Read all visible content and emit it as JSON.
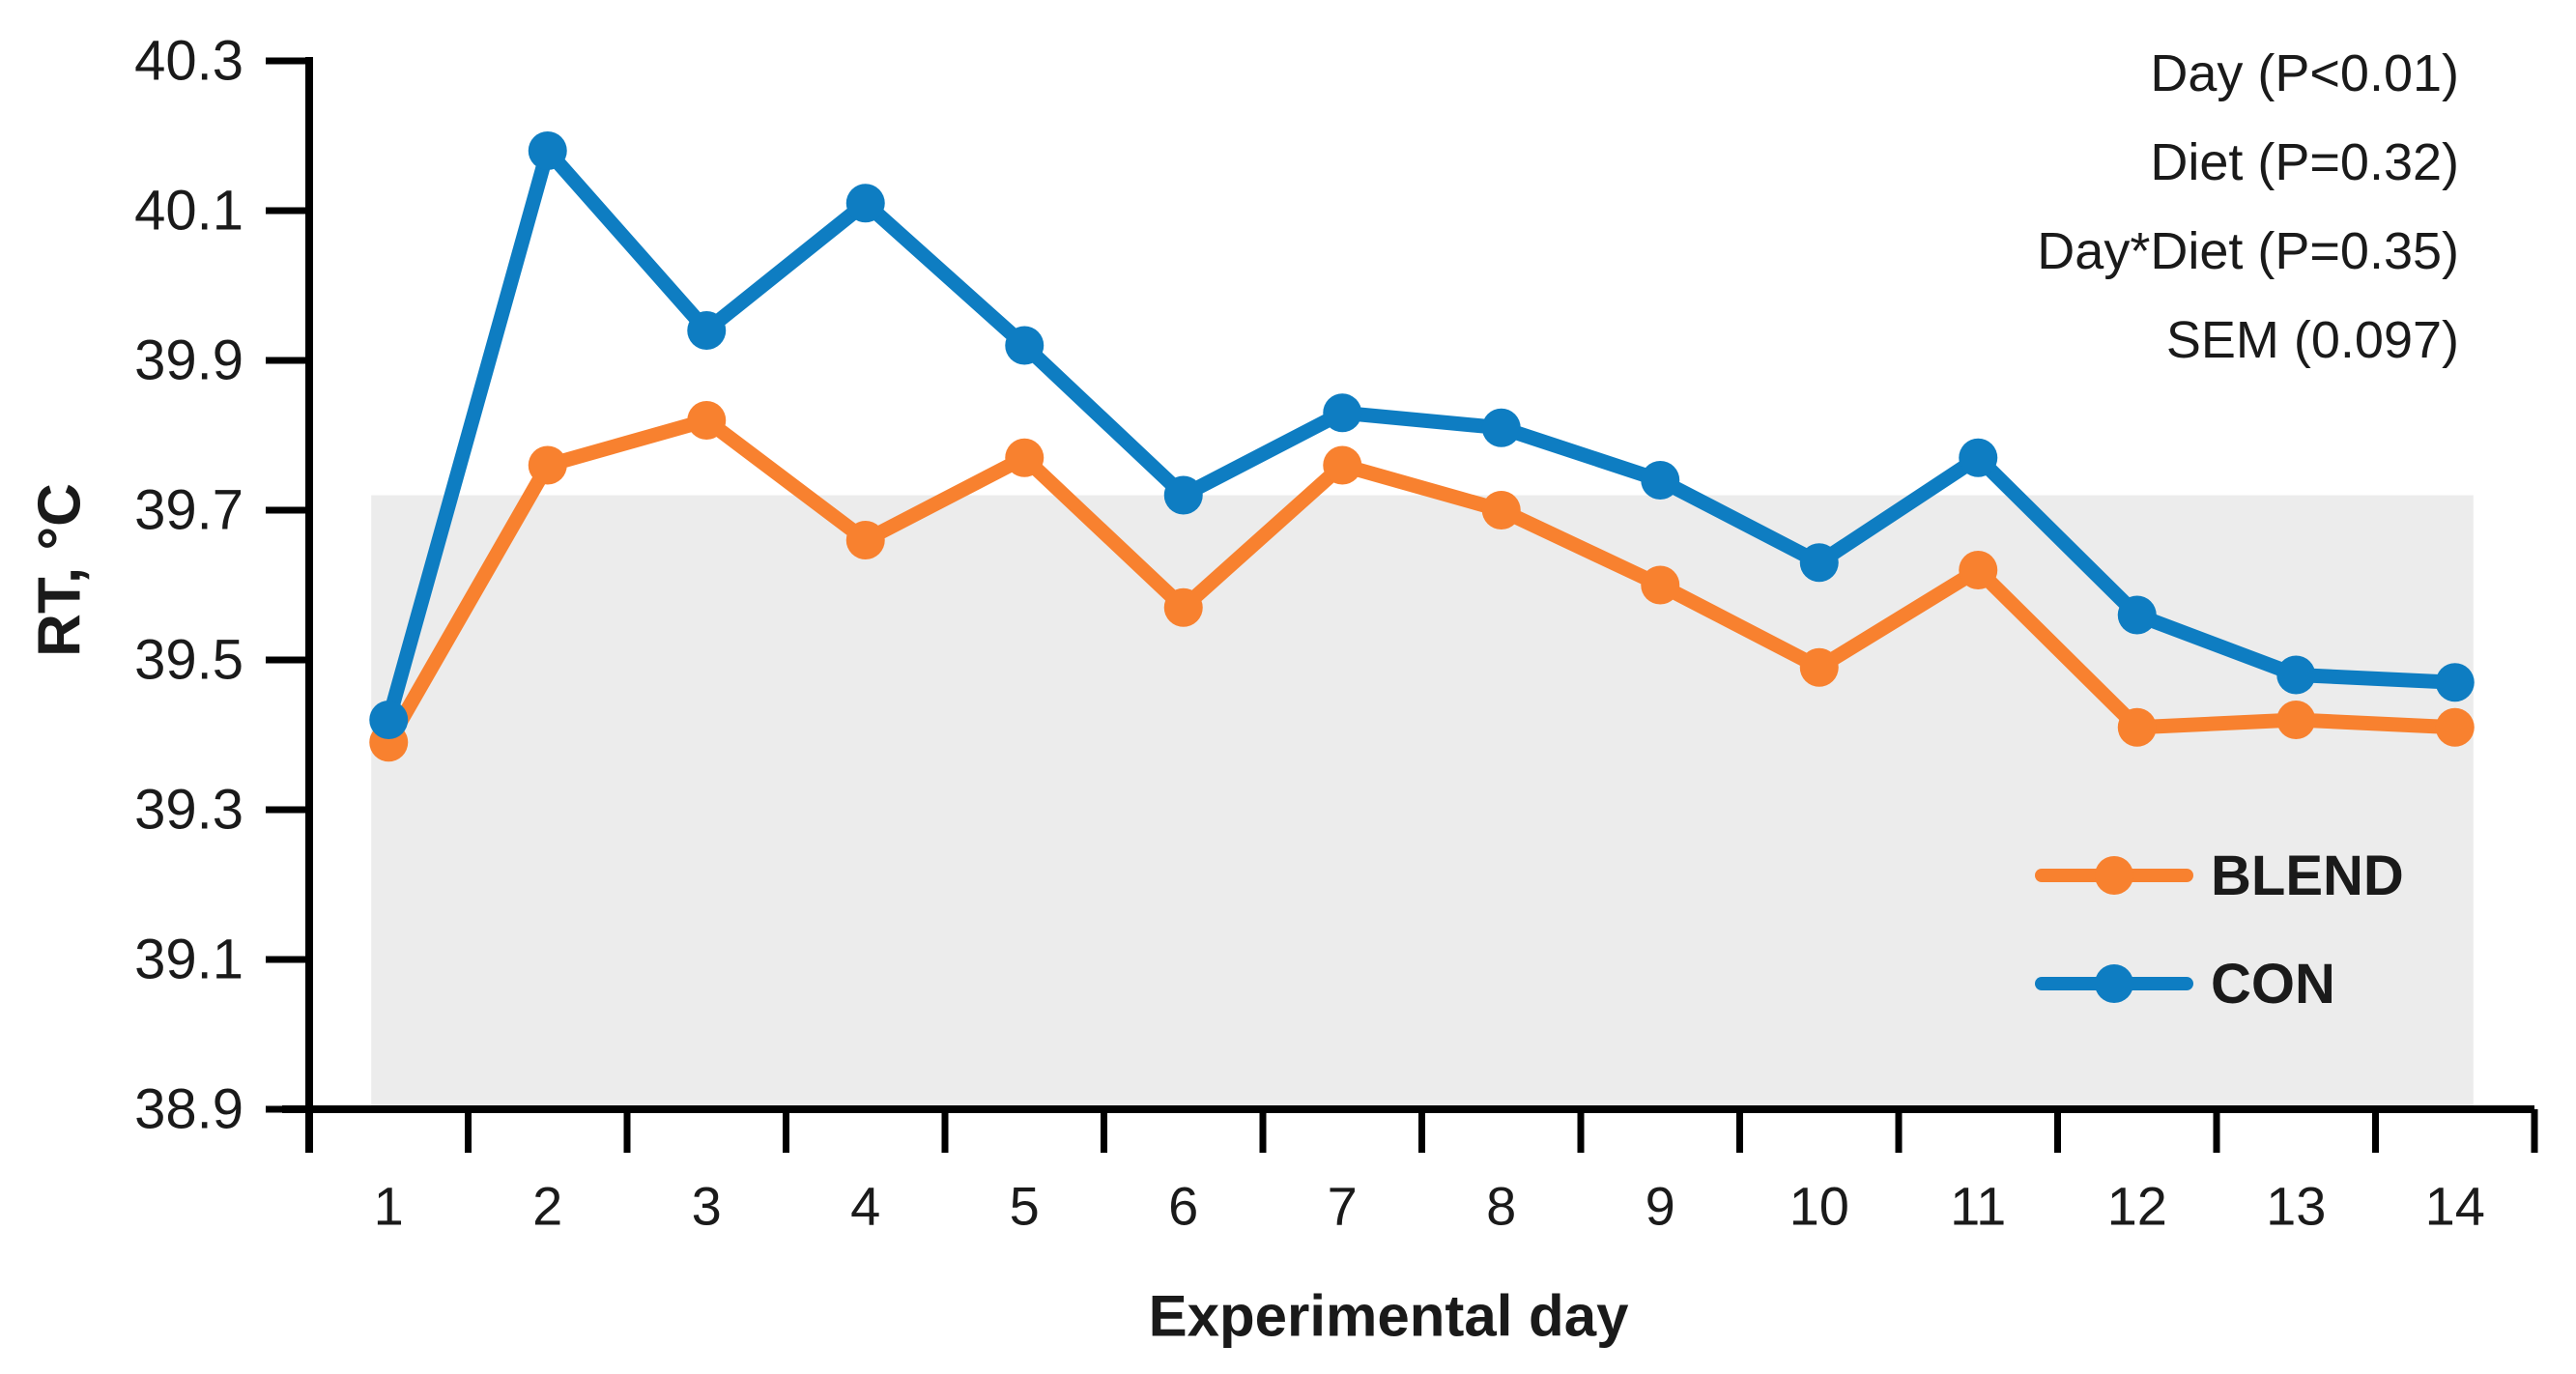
{
  "chart_data": {
    "type": "line",
    "title": "",
    "xlabel": "Experimental day",
    "ylabel": "RT, °C",
    "x": [
      1,
      2,
      3,
      4,
      5,
      6,
      7,
      8,
      9,
      10,
      11,
      12,
      13,
      14
    ],
    "ylim": [
      38.9,
      40.3
    ],
    "yticks": [
      38.9,
      39.1,
      39.3,
      39.5,
      39.7,
      39.9,
      40.1,
      40.3
    ],
    "grid": false,
    "series": [
      {
        "name": "BLEND",
        "color": "#F8812F",
        "values": [
          39.39,
          39.76,
          39.82,
          39.66,
          39.77,
          39.57,
          39.76,
          39.7,
          39.6,
          39.49,
          39.62,
          39.41,
          39.42,
          39.41
        ]
      },
      {
        "name": "CON",
        "color": "#0E7DC2",
        "values": [
          39.42,
          40.18,
          39.94,
          40.11,
          39.92,
          39.72,
          39.83,
          39.81,
          39.74,
          39.63,
          39.77,
          39.56,
          39.48,
          39.47
        ]
      }
    ],
    "shaded_band": {
      "from": 38.9,
      "to": 39.72,
      "color": "#ECECEC"
    },
    "annotations": [
      "Day (P<0.01)",
      "Diet (P=0.32)",
      "Day*Diet (P=0.35)",
      "SEM (0.097)"
    ],
    "legend_position": "inside-lower-right",
    "axis_color": "#000000"
  }
}
